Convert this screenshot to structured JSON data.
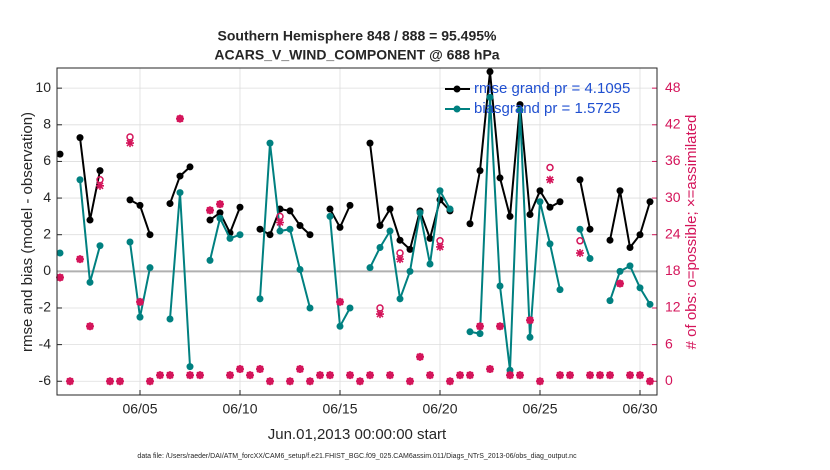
{
  "chart_data": {
    "type": "line",
    "title": [
      "Southern Hemisphere 848 / 888 = 95.495%",
      "ACARS_V_WIND_COMPONENT @ 688 hPa"
    ],
    "xlabel": "Jun.01,2013 00:00:00 start",
    "ylabel": "rmse and bias (model - observation)",
    "y2label": "# of obs: o=possible; ×=assimilated",
    "footnote": "data file: /Users/raeder/DAI/ATM_forcXX/CAM6_setup/f.e21.FHIST_BGC.f09_025.CAM6assim.011/Diags_NTrS_2013-06/obs_diag_output.nc",
    "x": [
      0,
      0.5,
      1,
      1.5,
      2,
      2.5,
      3,
      3.5,
      4,
      4.5,
      5,
      5.5,
      6,
      6.5,
      7,
      7.5,
      8,
      8.5,
      9,
      9.5,
      10,
      10.5,
      11,
      11.5,
      12,
      12.5,
      13,
      13.5,
      14,
      14.5,
      15,
      15.5,
      16,
      16.5,
      17,
      17.5,
      18,
      18.5,
      19,
      19.5,
      20,
      20.5,
      21,
      21.5,
      22,
      22.5,
      23,
      23.5,
      24,
      24.5,
      25,
      25.5,
      26,
      26.5,
      27,
      27.5,
      28,
      28.5,
      29,
      29.5
    ],
    "xlim": [
      -0.15,
      29.85
    ],
    "xticks": [
      {
        "value": 4,
        "label": "06/05"
      },
      {
        "value": 9,
        "label": "06/10"
      },
      {
        "value": 14,
        "label": "06/15"
      },
      {
        "value": 19,
        "label": "06/20"
      },
      {
        "value": 24,
        "label": "06/25"
      },
      {
        "value": 29,
        "label": "06/30"
      }
    ],
    "ylim": [
      -6.75,
      11.1
    ],
    "yticks": [
      -6,
      -4,
      -2,
      0,
      2,
      4,
      6,
      8,
      10
    ],
    "y2lim": [
      -2.25,
      51.3
    ],
    "y2ticks": [
      0,
      6,
      12,
      18,
      24,
      30,
      36,
      42,
      48
    ],
    "grid": true,
    "legend": "upper right",
    "series": [
      {
        "name": "rmse grand pr = 4.1095",
        "color": "#000000",
        "marker": "dot",
        "values": [
          6.4,
          null,
          7.3,
          2.8,
          5.5,
          null,
          null,
          3.9,
          3.6,
          2.0,
          null,
          3.7,
          5.2,
          5.7,
          null,
          2.8,
          3.2,
          2.1,
          3.5,
          null,
          2.3,
          2.0,
          3.4,
          3.3,
          2.5,
          2.0,
          null,
          3.4,
          2.4,
          3.6,
          null,
          7.0,
          2.5,
          3.4,
          1.7,
          1.2,
          3.3,
          1.8,
          3.9,
          3.3,
          null,
          2.6,
          5.5,
          10.9,
          5.1,
          3.0,
          9.1,
          3.1,
          4.4,
          3.5,
          3.8,
          null,
          5.0,
          2.3,
          null,
          1.7,
          4.4,
          1.3,
          2.0,
          3.8
        ]
      },
      {
        "name": "biasgrand pr = 1.5725",
        "color": "#008080",
        "marker": "dot",
        "values": [
          1.0,
          null,
          5.0,
          -0.6,
          1.4,
          null,
          null,
          1.6,
          -2.5,
          0.2,
          null,
          -2.6,
          4.3,
          -5.2,
          null,
          0.6,
          2.9,
          1.8,
          2.0,
          null,
          -1.5,
          7.0,
          2.2,
          2.3,
          0.1,
          -2.0,
          null,
          3.0,
          -3.0,
          -2.0,
          null,
          0.2,
          1.3,
          2.2,
          -1.5,
          0.0,
          3.2,
          0.4,
          4.4,
          3.4,
          null,
          -3.3,
          -3.4,
          9.5,
          -0.8,
          -5.4,
          8.8,
          -3.6,
          3.8,
          1.5,
          -1.0,
          null,
          2.3,
          0.7,
          null,
          -1.6,
          0.0,
          0.3,
          -0.9,
          -1.8
        ]
      },
      {
        "color": "#d4145a",
        "marker": "circle",
        "axis": "y2",
        "values": [
          17,
          0,
          20,
          9,
          33,
          0,
          0,
          40,
          13,
          0,
          1,
          1,
          43,
          1,
          1,
          28,
          29,
          1,
          2,
          1,
          2,
          0,
          27,
          0,
          2,
          0,
          1,
          1,
          13,
          1,
          0,
          1,
          12,
          1,
          21,
          0,
          4,
          1,
          23,
          0,
          1,
          1,
          9,
          2,
          9,
          1,
          1,
          10,
          0,
          35,
          1,
          1,
          23,
          1,
          1,
          1,
          16,
          1,
          1,
          0
        ]
      },
      {
        "color": "#d4145a",
        "marker": "asterisk",
        "axis": "y2",
        "values": [
          17,
          0,
          20,
          9,
          32,
          0,
          0,
          39,
          13,
          0,
          1,
          1,
          43,
          1,
          1,
          28,
          29,
          1,
          2,
          1,
          2,
          0,
          26,
          0,
          2,
          0,
          1,
          1,
          13,
          1,
          0,
          1,
          11,
          1,
          20,
          0,
          4,
          1,
          22,
          0,
          1,
          1,
          9,
          2,
          9,
          1,
          1,
          10,
          0,
          33,
          1,
          1,
          21,
          1,
          1,
          1,
          16,
          1,
          1,
          0
        ]
      }
    ]
  }
}
